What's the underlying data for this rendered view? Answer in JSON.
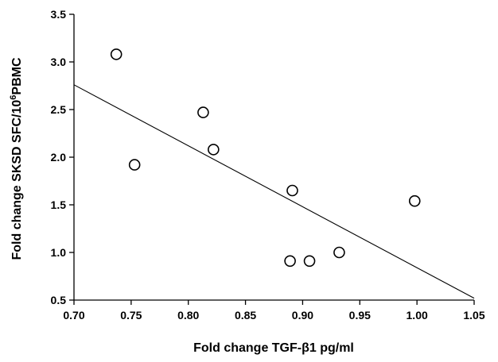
{
  "chart_data": {
    "type": "scatter",
    "title": "",
    "xlabel": "Fold change TGF-β1 pg/ml",
    "ylabel_parts": [
      "Fold change SKSD SFC/10",
      "6",
      "PBMC"
    ],
    "xlim": [
      0.7,
      1.05
    ],
    "ylim": [
      0.5,
      3.5
    ],
    "xticks": [
      "0.70",
      "0.75",
      "0.80",
      "0.85",
      "0.90",
      "0.95",
      "1.00",
      "1.05"
    ],
    "yticks": [
      "0.5",
      "1.0",
      "1.5",
      "2.0",
      "2.5",
      "3.0",
      "3.5"
    ],
    "grid": false,
    "points": [
      {
        "x": 0.737,
        "y": 3.08
      },
      {
        "x": 0.753,
        "y": 1.92
      },
      {
        "x": 0.813,
        "y": 2.47
      },
      {
        "x": 0.822,
        "y": 2.08
      },
      {
        "x": 0.889,
        "y": 0.91
      },
      {
        "x": 0.891,
        "y": 1.65
      },
      {
        "x": 0.906,
        "y": 0.91
      },
      {
        "x": 0.932,
        "y": 1.0
      },
      {
        "x": 0.998,
        "y": 1.54
      }
    ],
    "trendline": {
      "x": [
        0.7,
        1.05
      ],
      "y": [
        2.76,
        0.52
      ]
    }
  }
}
